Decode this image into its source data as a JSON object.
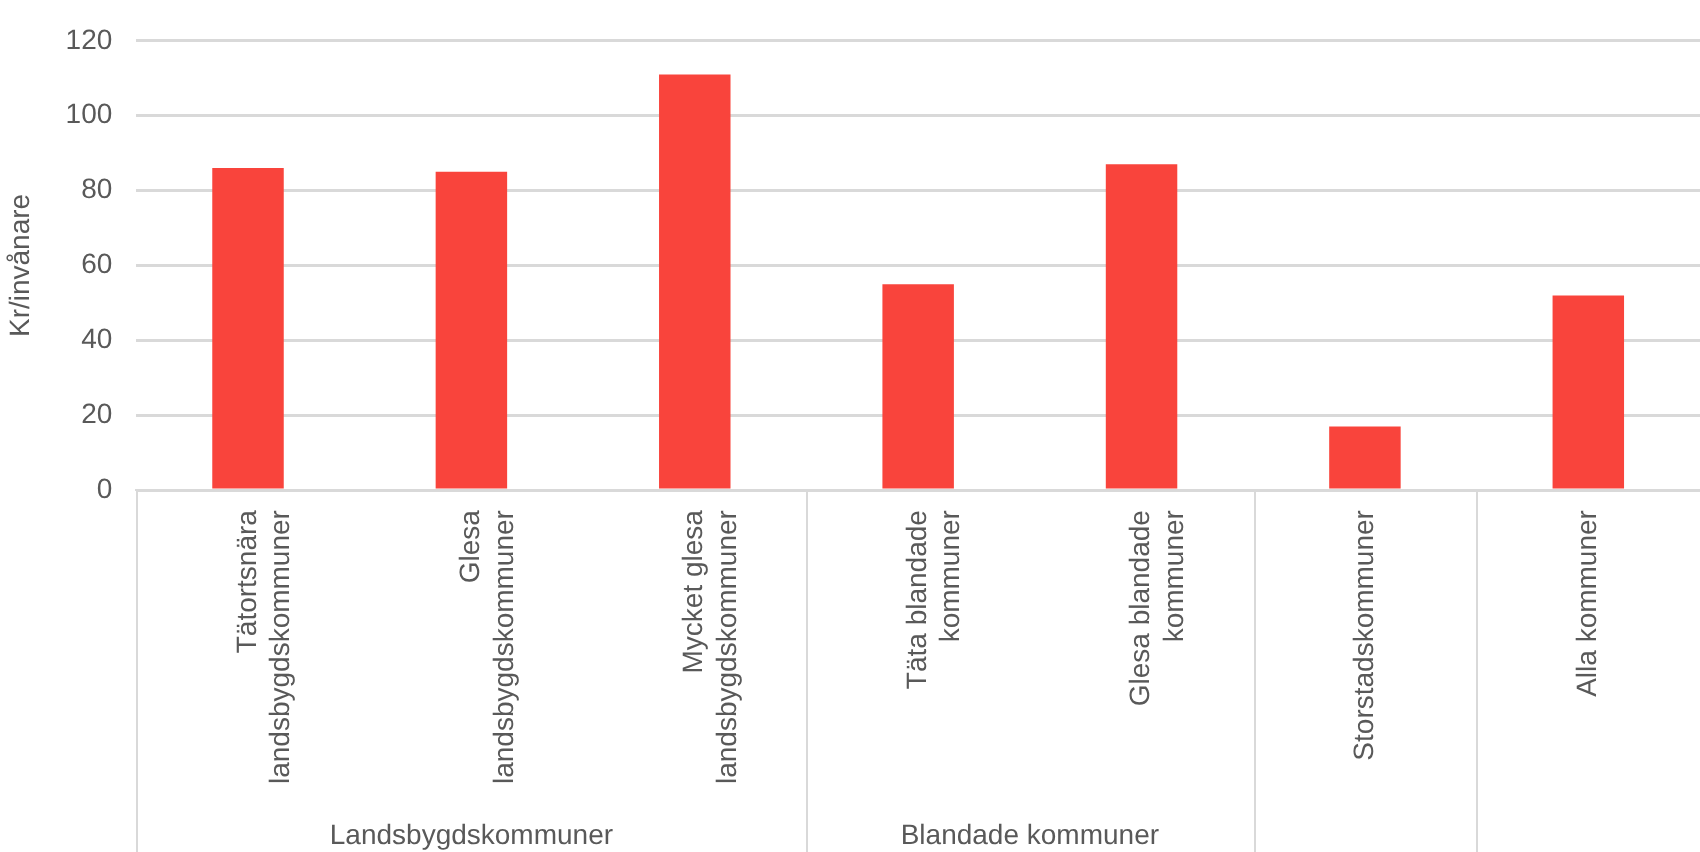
{
  "chart_data": {
    "type": "bar",
    "ylabel": "Kr/invånare",
    "categories": [
      "Tätortsnära landsbygdskommuner",
      "Glesa landsbygdskommuner",
      "Mycket glesa landsbygdskommuner",
      "Täta blandade kommuner",
      "Glesa blandade kommuner",
      "Storstadskommuner",
      "Alla kommuner"
    ],
    "values": [
      86,
      85,
      111,
      55,
      87,
      17,
      52
    ],
    "color": "#f9443c",
    "ylim": [
      0,
      120
    ],
    "yticks": [
      0,
      20,
      40,
      60,
      80,
      100,
      120
    ],
    "grid": "y",
    "annotations": [
      "Landsbygdskommuner",
      "Blandade kommuner"
    ]
  }
}
